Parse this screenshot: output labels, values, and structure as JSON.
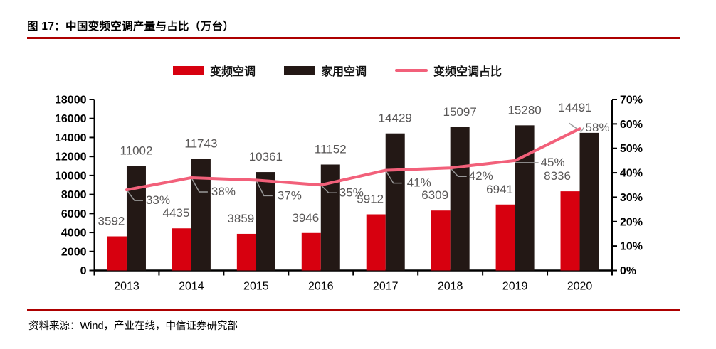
{
  "figure": {
    "title": "图 17：中国变频空调产量与占比（万台）",
    "source": "资料来源：Wind，产业在线，中信证券研究部"
  },
  "colors": {
    "rule": "#ad0000",
    "inverter_bar": "#d7000f",
    "household_bar": "#231815",
    "share_line": "#f2607a",
    "value_label": "#595757",
    "leader_line": "#999999",
    "axis_line": "#000000"
  },
  "legend": {
    "items": [
      {
        "label": "变频空调",
        "swatch": "bar-red"
      },
      {
        "label": "家用空调",
        "swatch": "bar-black"
      },
      {
        "label": "变频空调占比",
        "swatch": "line-pink"
      }
    ]
  },
  "chart_data": {
    "type": "bar",
    "subtype": "bar-line-combo",
    "title": "中国变频空调产量与占比（万台）",
    "categories": [
      "2013",
      "2014",
      "2015",
      "2016",
      "2017",
      "2018",
      "2019",
      "2020"
    ],
    "series": [
      {
        "name": "变频空调",
        "chart": "bar",
        "axis": "left",
        "values": [
          3592,
          4435,
          3859,
          3946,
          5912,
          6309,
          6941,
          8336
        ]
      },
      {
        "name": "家用空调",
        "chart": "bar",
        "axis": "left",
        "values": [
          11002,
          11743,
          10361,
          11152,
          14429,
          15097,
          15280,
          14491
        ]
      },
      {
        "name": "变频空调占比",
        "chart": "line",
        "axis": "right",
        "values_percent": [
          33,
          38,
          37,
          35,
          41,
          42,
          45,
          58
        ],
        "display_labels": [
          "33%",
          "38%",
          "37%",
          "35%",
          "41%",
          "42%",
          "45%",
          "58%"
        ]
      }
    ],
    "left_axis": {
      "min": 0,
      "max": 18000,
      "step": 2000,
      "tick_labels": [
        "0",
        "2000",
        "4000",
        "6000",
        "8000",
        "10000",
        "12000",
        "14000",
        "16000",
        "18000"
      ]
    },
    "right_axis": {
      "min": 0,
      "max": 70,
      "step": 10,
      "unit": "%",
      "tick_labels": [
        "0%",
        "10%",
        "20%",
        "30%",
        "40%",
        "50%",
        "60%",
        "70%"
      ]
    },
    "grid": false,
    "legend_position": "top"
  }
}
